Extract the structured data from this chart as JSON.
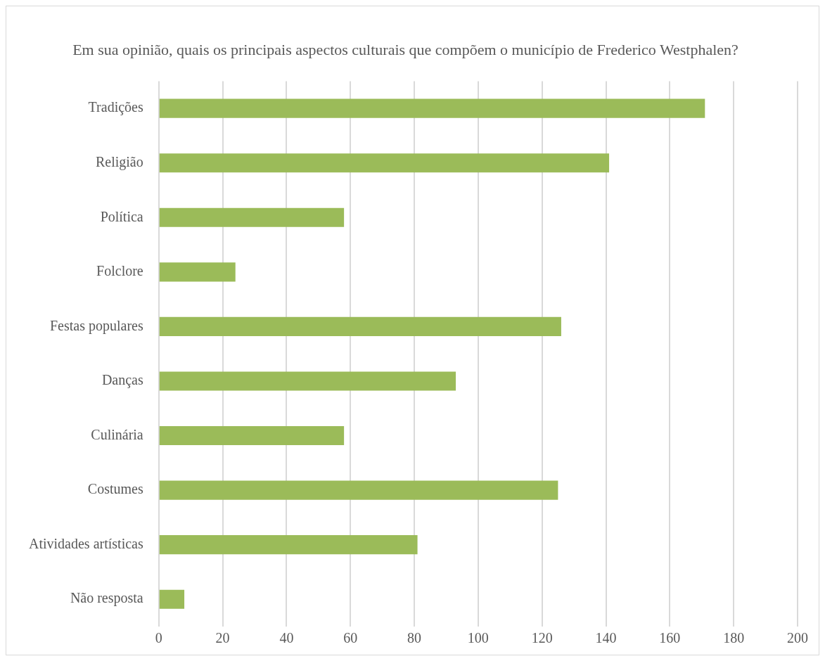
{
  "chart_data": {
    "type": "bar",
    "orientation": "horizontal",
    "title": "Em sua opinião, quais os principais aspectos culturais que compõem o município de Frederico Westphalen?",
    "categories": [
      "Tradições",
      "Religião",
      "Política",
      "Folclore",
      "Festas populares",
      "Danças",
      "Culinária",
      "Costumes",
      "Atividades artísticas",
      "Não resposta"
    ],
    "values": [
      171,
      141,
      58,
      24,
      126,
      93,
      58,
      125,
      81,
      8
    ],
    "color": "#9bbb59",
    "xlim": [
      0,
      200
    ],
    "xticks": [
      0,
      20,
      40,
      60,
      80,
      100,
      120,
      140,
      160,
      180,
      200
    ],
    "grid": "x",
    "legend": false
  }
}
